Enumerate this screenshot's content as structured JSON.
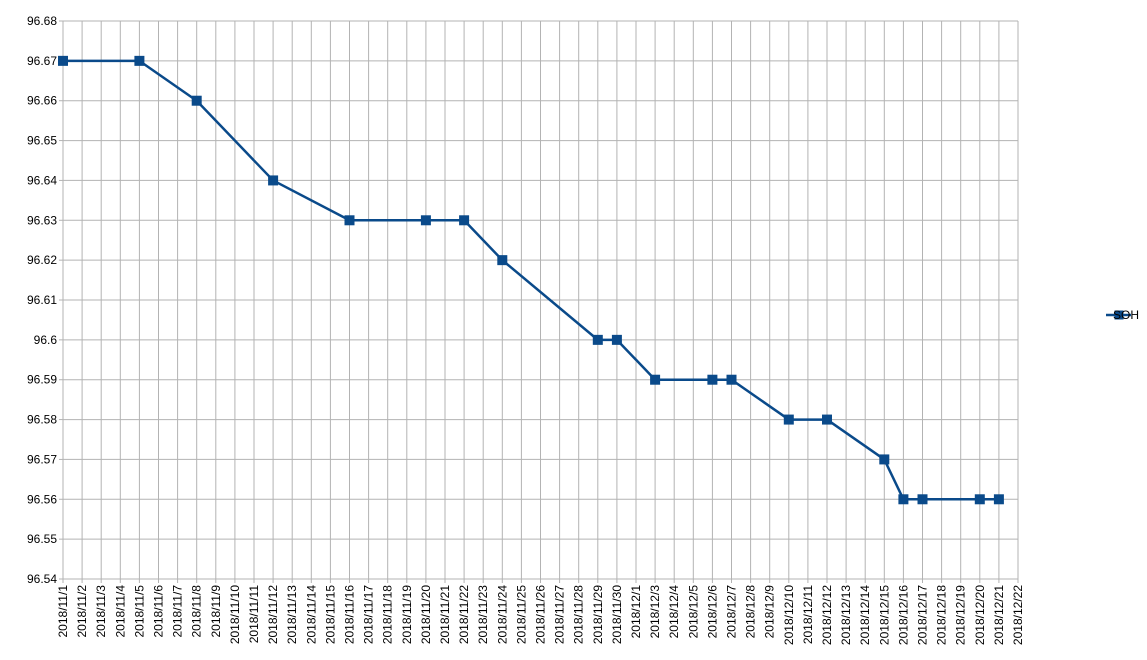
{
  "chart_data": {
    "type": "line",
    "title": "",
    "xlabel": "",
    "ylabel": "",
    "ylim": [
      96.54,
      96.68
    ],
    "yticks": [
      96.54,
      96.55,
      96.56,
      96.57,
      96.58,
      96.59,
      96.6,
      96.61,
      96.62,
      96.63,
      96.64,
      96.65,
      96.66,
      96.67,
      96.68
    ],
    "ytick_labels": [
      "96.54",
      "96.55",
      "96.56",
      "96.57",
      "96.58",
      "96.59",
      "96.6",
      "96.61",
      "96.62",
      "96.63",
      "96.64",
      "96.65",
      "96.66",
      "96.67",
      "96.68"
    ],
    "categories": [
      "2018/11/1",
      "2018/11/2",
      "2018/11/3",
      "2018/11/4",
      "2018/11/5",
      "2018/11/6",
      "2018/11/7",
      "2018/11/8",
      "2018/11/9",
      "2018/11/10",
      "2018/11/11",
      "2018/11/12",
      "2018/11/13",
      "2018/11/14",
      "2018/11/15",
      "2018/11/16",
      "2018/11/17",
      "2018/11/18",
      "2018/11/19",
      "2018/11/20",
      "2018/11/21",
      "2018/11/22",
      "2018/11/23",
      "2018/11/24",
      "2018/11/25",
      "2018/11/26",
      "2018/11/27",
      "2018/11/28",
      "2018/11/29",
      "2018/11/30",
      "2018/12/1",
      "2018/12/3",
      "2018/12/4",
      "2018/12/5",
      "2018/12/6",
      "2018/12/7",
      "2018/12/8",
      "2018/12/9",
      "2018/12/10",
      "2018/12/11",
      "2018/12/12",
      "2018/12/13",
      "2018/12/14",
      "2018/12/15",
      "2018/12/16",
      "2018/12/17",
      "2018/12/18",
      "2018/12/19",
      "2018/12/20",
      "2018/12/21",
      "2018/12/22"
    ],
    "grid": true,
    "legend_position": "right",
    "series": [
      {
        "name": "SOH",
        "color": "#0a4a8a",
        "marker": "square",
        "points": [
          {
            "x": "2018/11/1",
            "y": 96.67
          },
          {
            "x": "2018/11/5",
            "y": 96.67
          },
          {
            "x": "2018/11/8",
            "y": 96.66
          },
          {
            "x": "2018/11/12",
            "y": 96.64
          },
          {
            "x": "2018/11/16",
            "y": 96.63
          },
          {
            "x": "2018/11/20",
            "y": 96.63
          },
          {
            "x": "2018/11/22",
            "y": 96.63
          },
          {
            "x": "2018/11/24",
            "y": 96.62
          },
          {
            "x": "2018/11/29",
            "y": 96.6
          },
          {
            "x": "2018/11/30",
            "y": 96.6
          },
          {
            "x": "2018/12/3",
            "y": 96.59
          },
          {
            "x": "2018/12/6",
            "y": 96.59
          },
          {
            "x": "2018/12/7",
            "y": 96.59
          },
          {
            "x": "2018/12/10",
            "y": 96.58
          },
          {
            "x": "2018/12/12",
            "y": 96.58
          },
          {
            "x": "2018/12/15",
            "y": 96.57
          },
          {
            "x": "2018/12/16",
            "y": 96.56
          },
          {
            "x": "2018/12/17",
            "y": 96.56
          },
          {
            "x": "2018/12/20",
            "y": 96.56
          },
          {
            "x": "2018/12/21",
            "y": 96.56
          }
        ]
      }
    ]
  }
}
